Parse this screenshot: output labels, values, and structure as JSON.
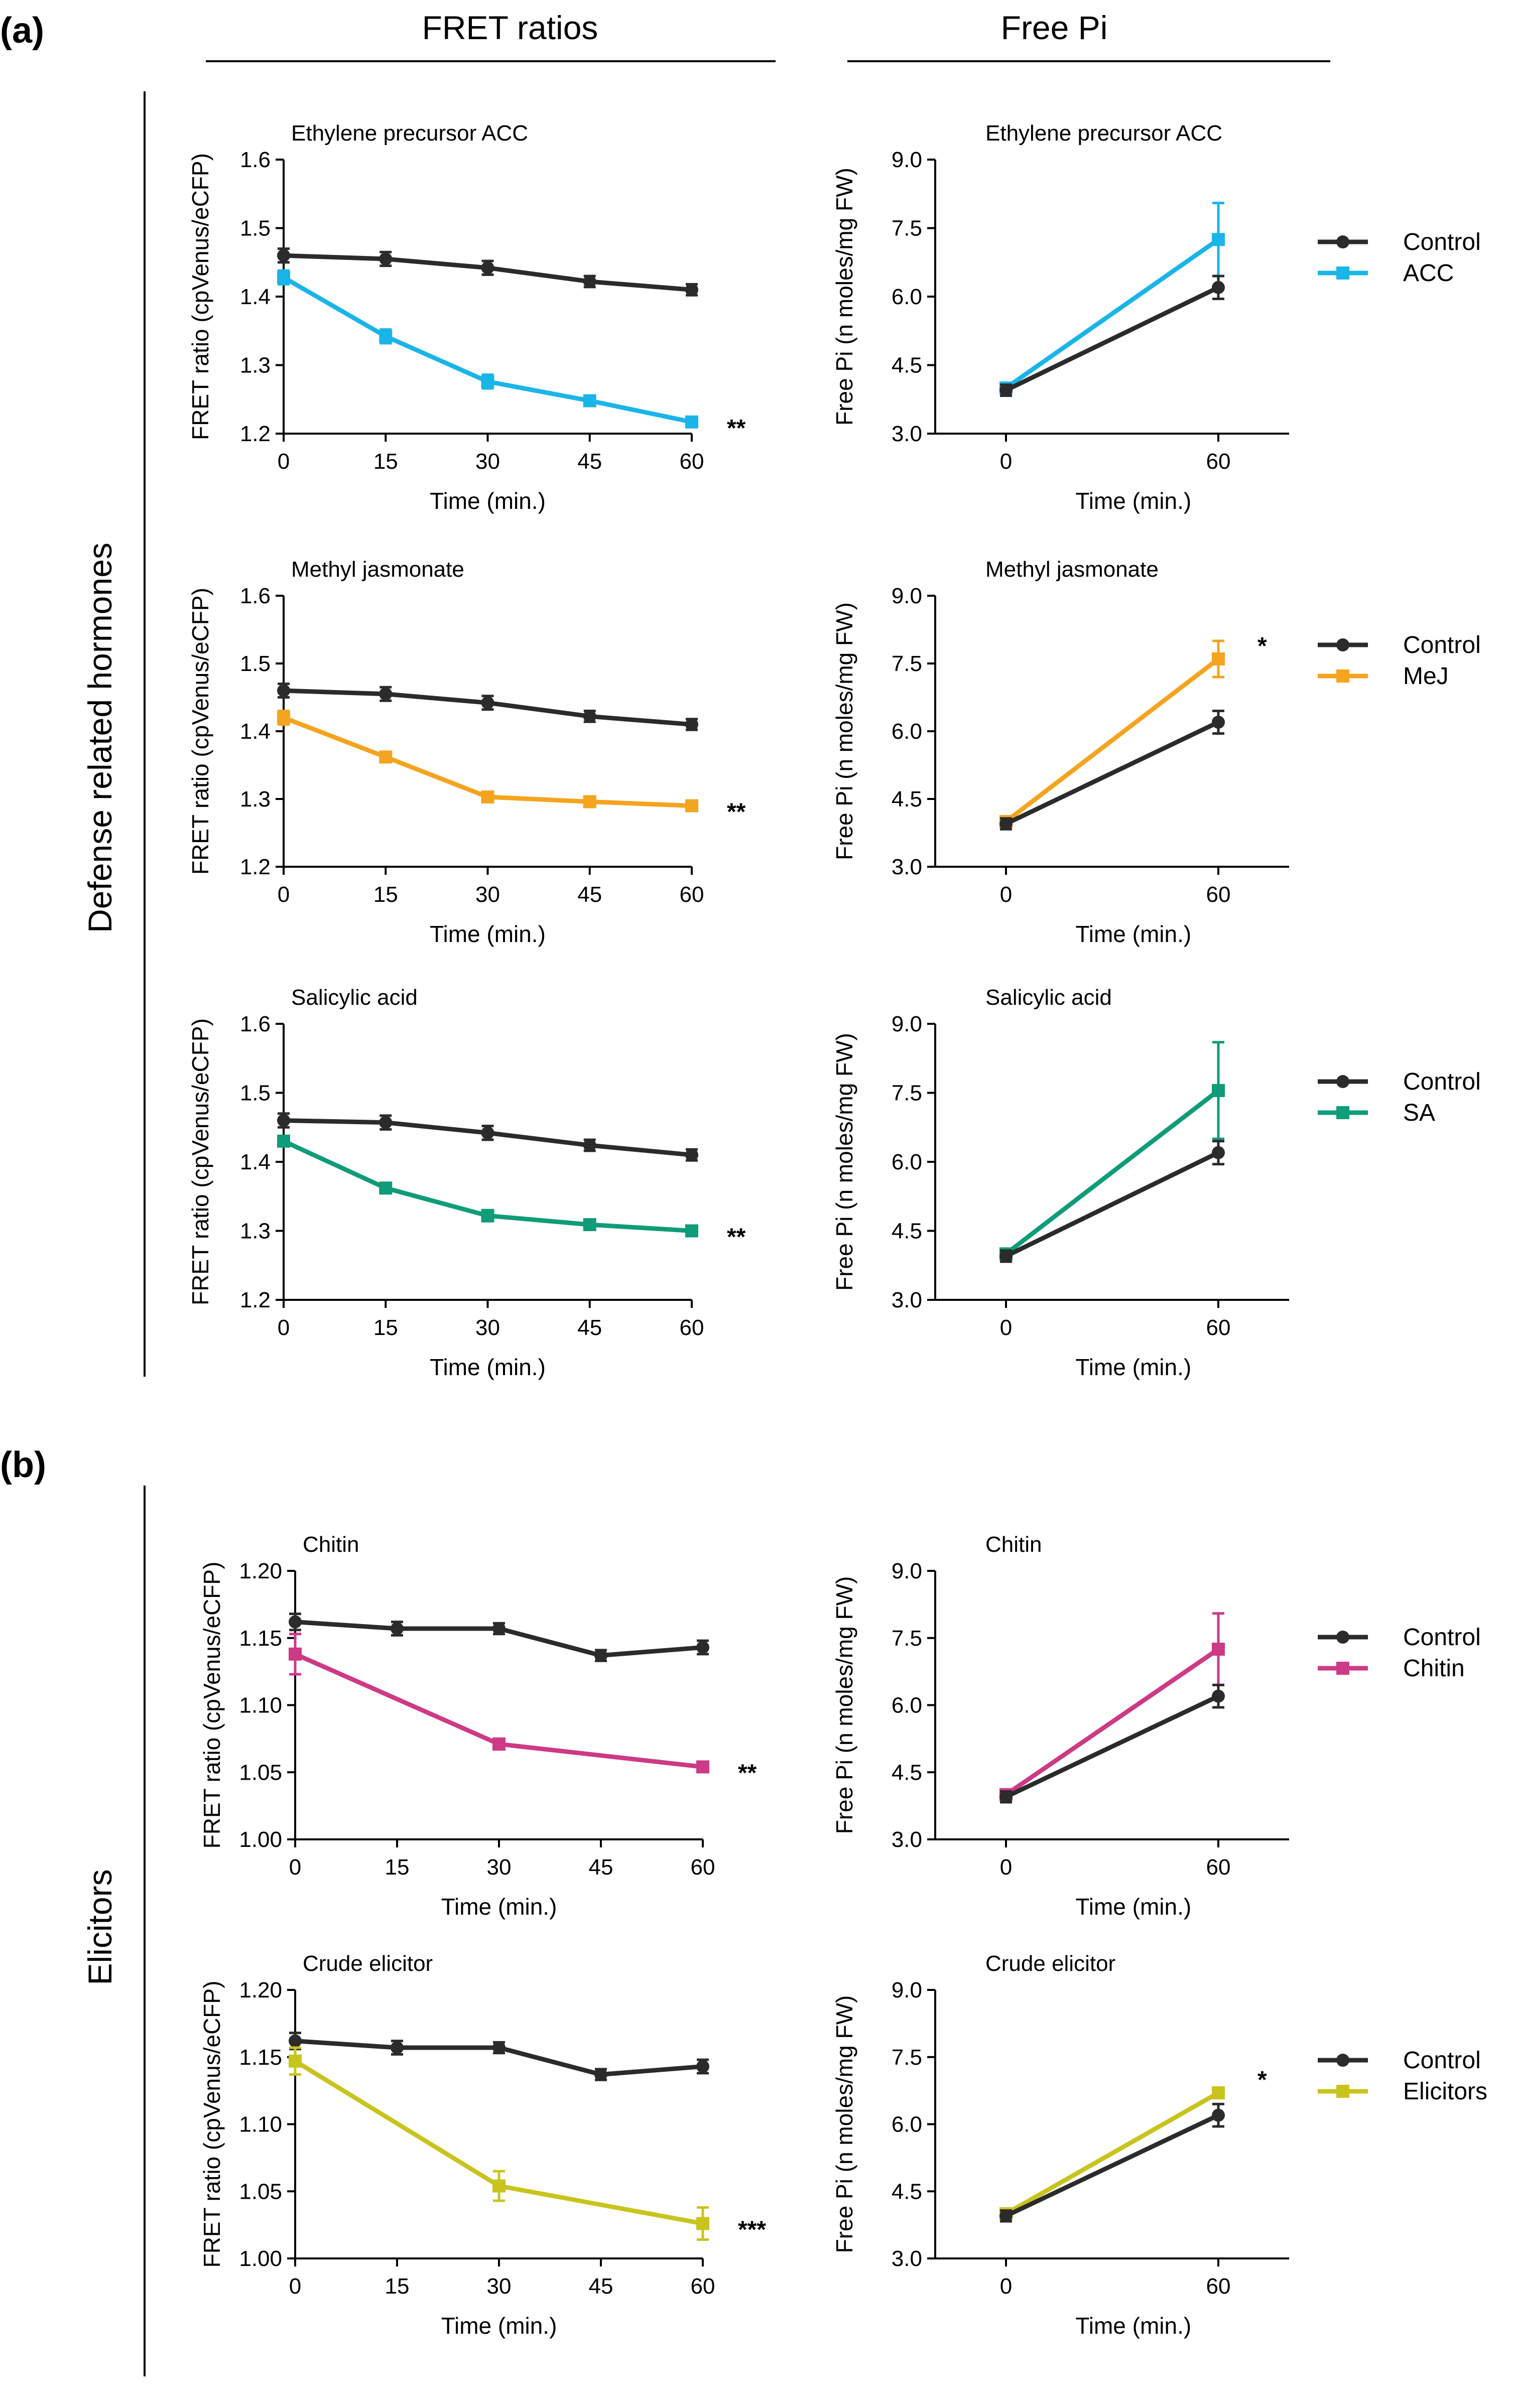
{
  "header": {
    "col1": "FRET ratios",
    "col2": "Free Pi"
  },
  "panel_labels": {
    "a": "(a)",
    "b": "(b)"
  },
  "side_labels": {
    "a": "Defense related hormones",
    "b": "Elicitors"
  },
  "legend_control": "Control",
  "colors": {
    "control": "#2b2b2b",
    "acc": "#1ab5e8",
    "mej": "#f5a41f",
    "sa": "#0f9c78",
    "chitin": "#cd3a86",
    "elicitors": "#c8c41e"
  },
  "chart_data": [
    {
      "type": "line",
      "title": "Ethylene precursor ACC",
      "xlabel": "Time (min.)",
      "ylabel": "FRET ratio (cpVenus/eCFP)",
      "ylim": [
        1.2,
        1.6
      ],
      "xlim": [
        0,
        60
      ],
      "xticks": [
        0,
        15,
        30,
        45,
        60
      ],
      "xtick_labels": [
        "0",
        "15",
        "30",
        "45",
        "60"
      ],
      "yticks": [
        1.2,
        1.3,
        1.4,
        1.5,
        1.6
      ],
      "ytick_labels": [
        "1.2",
        "1.3",
        "1.4",
        "1.5",
        "1.6"
      ],
      "significance": "**",
      "series": [
        {
          "name": "Control",
          "color": "#2b2b2b",
          "marker": "circle",
          "x": [
            0,
            15,
            30,
            45,
            60
          ],
          "y": [
            1.46,
            1.455,
            1.442,
            1.422,
            1.41
          ],
          "err": [
            0.01,
            0.01,
            0.01,
            0.008,
            0.008
          ]
        },
        {
          "name": "ACC",
          "color": "#1ab5e8",
          "marker": "square",
          "x": [
            0,
            15,
            30,
            45,
            60
          ],
          "y": [
            1.428,
            1.342,
            1.276,
            1.248,
            1.217
          ],
          "err": [
            0.01,
            0.01,
            0.01,
            0.007,
            0.005
          ]
        }
      ]
    },
    {
      "type": "line",
      "title": "Ethylene precursor ACC",
      "xlabel": "Time (min.)",
      "ylabel": "Free Pi (n moles/mg FW)",
      "ylim": [
        3.0,
        9.0
      ],
      "xlim": [
        -20,
        80
      ],
      "xticks": [
        0,
        60
      ],
      "xtick_labels": [
        "0",
        "60"
      ],
      "yticks": [
        3.0,
        4.5,
        6.0,
        7.5,
        9.0
      ],
      "ytick_labels": [
        "3.0",
        "4.5",
        "6.0",
        "7.5",
        "9.0"
      ],
      "significance": "",
      "legend": [
        "Control",
        "ACC"
      ],
      "series": [
        {
          "name": "Control",
          "color": "#2b2b2b",
          "marker": "circle",
          "x": [
            0,
            60
          ],
          "y": [
            3.95,
            6.2
          ],
          "err": [
            0.12,
            0.25
          ]
        },
        {
          "name": "ACC",
          "color": "#1ab5e8",
          "marker": "square",
          "x": [
            0,
            60
          ],
          "y": [
            4.0,
            7.25
          ],
          "err": [
            0.08,
            0.8
          ]
        }
      ]
    },
    {
      "type": "line",
      "title": "Methyl jasmonate",
      "xlabel": "Time (min.)",
      "ylabel": "FRET ratio (cpVenus/eCFP)",
      "ylim": [
        1.2,
        1.6
      ],
      "xlim": [
        0,
        60
      ],
      "xticks": [
        0,
        15,
        30,
        45,
        60
      ],
      "xtick_labels": [
        "0",
        "15",
        "30",
        "45",
        "60"
      ],
      "yticks": [
        1.2,
        1.3,
        1.4,
        1.5,
        1.6
      ],
      "ytick_labels": [
        "1.2",
        "1.3",
        "1.4",
        "1.5",
        "1.6"
      ],
      "significance": "**",
      "series": [
        {
          "name": "Control",
          "color": "#2b2b2b",
          "marker": "circle",
          "x": [
            0,
            15,
            30,
            45,
            60
          ],
          "y": [
            1.46,
            1.455,
            1.442,
            1.422,
            1.41
          ],
          "err": [
            0.01,
            0.01,
            0.01,
            0.008,
            0.008
          ]
        },
        {
          "name": "MeJ",
          "color": "#f5a41f",
          "marker": "square",
          "x": [
            0,
            15,
            30,
            45,
            60
          ],
          "y": [
            1.42,
            1.362,
            1.303,
            1.296,
            1.29
          ],
          "err": [
            0.01,
            0.006,
            0.004,
            0.004,
            0.004
          ]
        }
      ]
    },
    {
      "type": "line",
      "title": "Methyl jasmonate",
      "xlabel": "Time (min.)",
      "ylabel": "Free Pi (n moles/mg FW)",
      "ylim": [
        3.0,
        9.0
      ],
      "xlim": [
        -20,
        80
      ],
      "xticks": [
        0,
        60
      ],
      "xtick_labels": [
        "0",
        "60"
      ],
      "yticks": [
        3.0,
        4.5,
        6.0,
        7.5,
        9.0
      ],
      "ytick_labels": [
        "3.0",
        "4.5",
        "6.0",
        "7.5",
        "9.0"
      ],
      "significance": "*",
      "legend": [
        "Control",
        "MeJ"
      ],
      "series": [
        {
          "name": "Control",
          "color": "#2b2b2b",
          "marker": "circle",
          "x": [
            0,
            60
          ],
          "y": [
            3.95,
            6.2
          ],
          "err": [
            0.12,
            0.25
          ]
        },
        {
          "name": "MeJ",
          "color": "#f5a41f",
          "marker": "square",
          "x": [
            0,
            60
          ],
          "y": [
            4.0,
            7.6
          ],
          "err": [
            0.08,
            0.4
          ]
        }
      ]
    },
    {
      "type": "line",
      "title": "Salicylic acid",
      "xlabel": "Time (min.)",
      "ylabel": "FRET ratio (cpVenus/eCFP)",
      "ylim": [
        1.2,
        1.6
      ],
      "xlim": [
        0,
        60
      ],
      "xticks": [
        0,
        15,
        30,
        45,
        60
      ],
      "xtick_labels": [
        "0",
        "15",
        "30",
        "45",
        "60"
      ],
      "yticks": [
        1.2,
        1.3,
        1.4,
        1.5,
        1.6
      ],
      "ytick_labels": [
        "1.2",
        "1.3",
        "1.4",
        "1.5",
        "1.6"
      ],
      "significance": "**",
      "series": [
        {
          "name": "Control",
          "color": "#2b2b2b",
          "marker": "circle",
          "x": [
            0,
            15,
            30,
            45,
            60
          ],
          "y": [
            1.46,
            1.457,
            1.442,
            1.424,
            1.41
          ],
          "err": [
            0.01,
            0.01,
            0.01,
            0.008,
            0.008
          ]
        },
        {
          "name": "SA",
          "color": "#0f9c78",
          "marker": "square",
          "x": [
            0,
            15,
            30,
            45,
            60
          ],
          "y": [
            1.43,
            1.362,
            1.322,
            1.309,
            1.3
          ],
          "err": [
            0.006,
            0.006,
            0.008,
            0.007,
            0.006
          ]
        }
      ]
    },
    {
      "type": "line",
      "title": "Salicylic acid",
      "xlabel": "Time (min.)",
      "ylabel": "Free Pi (n moles/mg FW)",
      "ylim": [
        3.0,
        9.0
      ],
      "xlim": [
        -20,
        80
      ],
      "xticks": [
        0,
        60
      ],
      "xtick_labels": [
        "0",
        "60"
      ],
      "yticks": [
        3.0,
        4.5,
        6.0,
        7.5,
        9.0
      ],
      "ytick_labels": [
        "3.0",
        "4.5",
        "6.0",
        "7.5",
        "9.0"
      ],
      "significance": "",
      "legend": [
        "Control",
        "SA"
      ],
      "series": [
        {
          "name": "Control",
          "color": "#2b2b2b",
          "marker": "circle",
          "x": [
            0,
            60
          ],
          "y": [
            3.95,
            6.2
          ],
          "err": [
            0.12,
            0.25
          ]
        },
        {
          "name": "SA",
          "color": "#0f9c78",
          "marker": "square",
          "x": [
            0,
            60
          ],
          "y": [
            4.0,
            7.55
          ],
          "err": [
            0.08,
            1.05
          ]
        }
      ]
    },
    {
      "type": "line",
      "title": "Chitin",
      "xlabel": "Time (min.)",
      "ylabel": "FRET ratio (cpVenus/eCFP)",
      "ylim": [
        1.0,
        1.2
      ],
      "xlim": [
        0,
        60
      ],
      "xticks": [
        0,
        15,
        30,
        45,
        60
      ],
      "xtick_labels": [
        "0",
        "15",
        "30",
        "45",
        "60"
      ],
      "yticks": [
        1.0,
        1.05,
        1.1,
        1.15,
        1.2
      ],
      "ytick_labels": [
        "1.00",
        "1.05",
        "1.10",
        "1.15",
        "1.20"
      ],
      "significance": "**",
      "series": [
        {
          "name": "Control",
          "color": "#2b2b2b",
          "marker": "circle",
          "x": [
            0,
            15,
            30,
            45,
            60
          ],
          "y": [
            1.162,
            1.157,
            1.157,
            1.137,
            1.143
          ],
          "err": [
            0.006,
            0.005,
            0.004,
            0.004,
            0.005
          ]
        },
        {
          "name": "Chitin",
          "color": "#cd3a86",
          "marker": "square",
          "x": [
            0,
            30,
            60
          ],
          "y": [
            1.138,
            1.071,
            1.054
          ],
          "err": [
            0.015,
            0.004,
            0.003
          ]
        }
      ]
    },
    {
      "type": "line",
      "title": "Chitin",
      "xlabel": "Time (min.)",
      "ylabel": "Free Pi (n moles/mg FW)",
      "ylim": [
        3.0,
        9.0
      ],
      "xlim": [
        -20,
        80
      ],
      "xticks": [
        0,
        60
      ],
      "xtick_labels": [
        "0",
        "60"
      ],
      "yticks": [
        3.0,
        4.5,
        6.0,
        7.5,
        9.0
      ],
      "ytick_labels": [
        "3.0",
        "4.5",
        "6.0",
        "7.5",
        "9.0"
      ],
      "significance": "",
      "legend": [
        "Control",
        "Chitin"
      ],
      "series": [
        {
          "name": "Control",
          "color": "#2b2b2b",
          "marker": "circle",
          "x": [
            0,
            60
          ],
          "y": [
            3.95,
            6.2
          ],
          "err": [
            0.12,
            0.25
          ]
        },
        {
          "name": "Chitin",
          "color": "#cd3a86",
          "marker": "square",
          "x": [
            0,
            60
          ],
          "y": [
            4.0,
            7.25
          ],
          "err": [
            0.08,
            0.8
          ]
        }
      ]
    },
    {
      "type": "line",
      "title": "Crude elicitor",
      "xlabel": "Time (min.)",
      "ylabel": "FRET ratio (cpVenus/eCFP)",
      "ylim": [
        1.0,
        1.2
      ],
      "xlim": [
        0,
        60
      ],
      "xticks": [
        0,
        15,
        30,
        45,
        60
      ],
      "xtick_labels": [
        "0",
        "15",
        "30",
        "45",
        "60"
      ],
      "yticks": [
        1.0,
        1.05,
        1.1,
        1.15,
        1.2
      ],
      "ytick_labels": [
        "1.00",
        "1.05",
        "1.10",
        "1.15",
        "1.20"
      ],
      "significance": "***",
      "series": [
        {
          "name": "Control",
          "color": "#2b2b2b",
          "marker": "circle",
          "x": [
            0,
            15,
            30,
            45,
            60
          ],
          "y": [
            1.162,
            1.157,
            1.157,
            1.137,
            1.143
          ],
          "err": [
            0.006,
            0.005,
            0.004,
            0.004,
            0.005
          ]
        },
        {
          "name": "Elicitors",
          "color": "#c8c41e",
          "marker": "square",
          "x": [
            0,
            30,
            60
          ],
          "y": [
            1.147,
            1.054,
            1.026
          ],
          "err": [
            0.01,
            0.011,
            0.012
          ]
        }
      ]
    },
    {
      "type": "line",
      "title": "Crude elicitor",
      "xlabel": "Time (min.)",
      "ylabel": "Free Pi (n moles/mg FW)",
      "ylim": [
        3.0,
        9.0
      ],
      "xlim": [
        -20,
        80
      ],
      "xticks": [
        0,
        60
      ],
      "xtick_labels": [
        "0",
        "60"
      ],
      "yticks": [
        3.0,
        4.5,
        6.0,
        7.5,
        9.0
      ],
      "ytick_labels": [
        "3.0",
        "4.5",
        "6.0",
        "7.5",
        "9.0"
      ],
      "significance": "*",
      "legend": [
        "Control",
        "Elicitors"
      ],
      "series": [
        {
          "name": "Control",
          "color": "#2b2b2b",
          "marker": "circle",
          "x": [
            0,
            60
          ],
          "y": [
            3.95,
            6.2
          ],
          "err": [
            0.12,
            0.25
          ]
        },
        {
          "name": "Elicitors",
          "color": "#c8c41e",
          "marker": "square",
          "x": [
            0,
            60
          ],
          "y": [
            4.0,
            6.7
          ],
          "err": [
            0.08,
            0.12
          ]
        }
      ]
    }
  ]
}
